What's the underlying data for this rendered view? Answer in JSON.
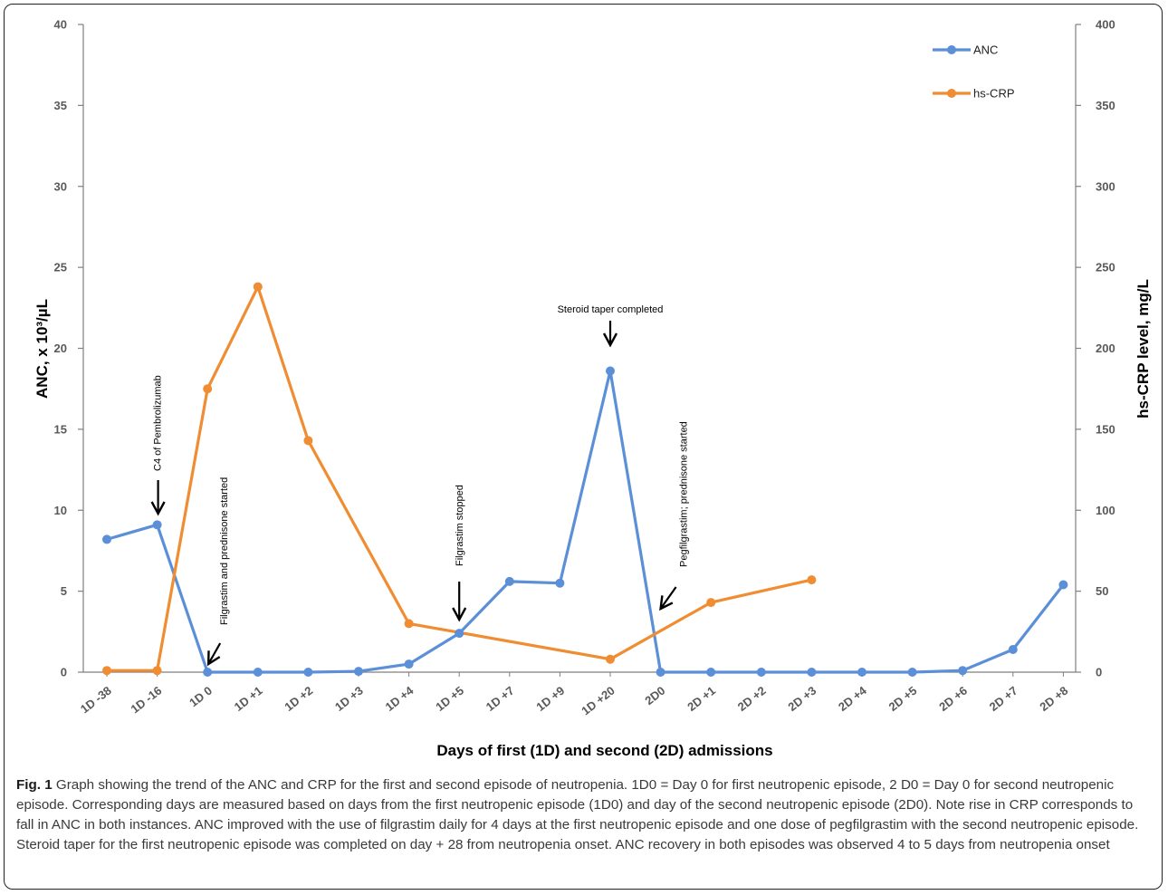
{
  "chart_data": {
    "type": "line",
    "categories": [
      "1D -38",
      "1D -16",
      "1D 0",
      "1D +1",
      "1D +2",
      "1D +3",
      "1D +4",
      "1D +5",
      "1D +7",
      "1D +9",
      "1D +20",
      "2D0",
      "2D +1",
      "2D +2",
      "2D +3",
      "2D +4",
      "2D +5",
      "2D +6",
      "2D +7",
      "2D +8"
    ],
    "series": [
      {
        "name": "ANC",
        "axis": "left",
        "color": "#5B8FD8",
        "values": [
          8.2,
          9.1,
          0,
          0,
          0,
          0.05,
          0.5,
          2.4,
          5.6,
          5.5,
          18.6,
          0,
          0,
          0,
          0,
          0,
          0,
          0.1,
          1.4,
          5.4
        ]
      },
      {
        "name": "hs-CRP",
        "axis": "right",
        "color": "#F08C32",
        "values": [
          1,
          1,
          175,
          238,
          143,
          null,
          30,
          null,
          null,
          null,
          8,
          null,
          43,
          null,
          57,
          null,
          null,
          null,
          null,
          null
        ]
      }
    ],
    "xlabel": "Days of first (1D) and second (2D) admissions",
    "ylabel_left": "ANC, x 10³/µL",
    "ylabel_right": "hs-CRP level, mg/L",
    "ylim_left": [
      0,
      40
    ],
    "ylim_right": [
      0,
      400
    ],
    "yticks_left": [
      "0",
      "5",
      "10",
      "15",
      "20",
      "25",
      "30",
      "35",
      "40"
    ],
    "yticks_right": [
      "0",
      "50",
      "100",
      "150",
      "200",
      "250",
      "300",
      "350",
      "400"
    ],
    "grid": false,
    "legend_position": "top-right",
    "annotations": [
      {
        "text": "C4 of Pembrolizumab",
        "category": "1D -16",
        "direction": "down"
      },
      {
        "text": "Filgrastim and prednisone started",
        "category": "1D 0",
        "direction": "down-left"
      },
      {
        "text": "Filgrastim stopped",
        "category": "1D +5",
        "direction": "down"
      },
      {
        "text": "Steroid taper completed",
        "category": "1D +20",
        "direction": "down"
      },
      {
        "text": "Pegfilgrastim; prednisone started",
        "category": "2D0",
        "direction": "down-left"
      }
    ]
  },
  "caption": {
    "label": "Fig. 1",
    "text": "Graph showing the trend of the ANC and CRP for the first and second episode of neutropenia. 1D0 = Day 0 for first neutropenic episode, 2 D0 = Day 0 for second neutropenic episode. Corresponding days are measured based on days from the first neutropenic episode (1D0) and day of the second neutropenic episode (2D0). Note rise in CRP corresponds to fall in ANC in both instances. ANC improved with the use of filgrastim daily for 4 days at the first neutropenic episode and one dose of pegfilgrastim with the second neutropenic episode. Steroid taper for the first neutropenic episode was completed on day + 28 from neutropenia onset. ANC recovery in both episodes was observed 4 to 5 days from neutropenia onset"
  }
}
